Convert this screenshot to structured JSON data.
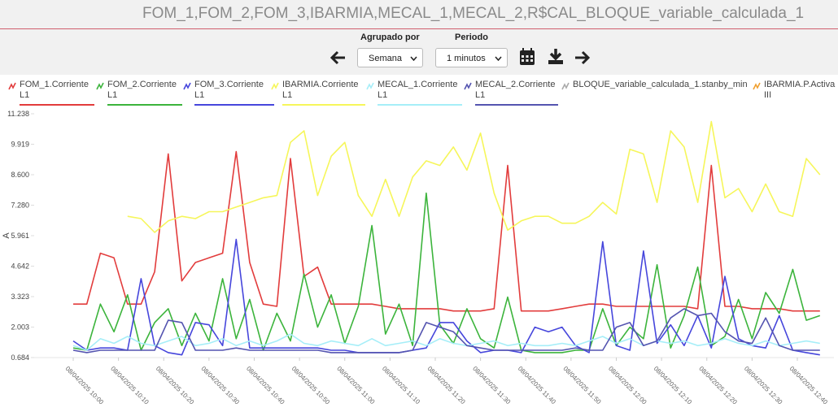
{
  "header": {
    "title": "FOM_1,FOM_2,FOM_3,IBARMIA,MECAL_1,MECAL_2,R$CAL_BLOQUE_variable_calculada_1"
  },
  "controls": {
    "group_label": "Agrupado por",
    "group_value": "Semana",
    "period_label": "Periodo",
    "period_value": "1 minutos"
  },
  "chart_data": {
    "type": "line",
    "ylabel": "A",
    "ylim": [
      0.684,
      11.238
    ],
    "yticks": [
      0.684,
      2.003,
      3.323,
      4.642,
      5.961,
      {
        "value": 7.28,
        "label": "7.280"
      },
      {
        "value": 8.6,
        "label": "8.600"
      },
      9.919,
      11.238
    ],
    "xticks": [
      "08/04/2025 10:00",
      "08/04/2025 10:10",
      "08/04/2025 10:20",
      "08/04/2025 10:30",
      "08/04/2025 10:40",
      "08/04/2025 10:50",
      "08/04/2025 11:00",
      "08/04/2025 11:10",
      "08/04/2025 11:20",
      "08/04/2025 11:30",
      "08/04/2025 11:40",
      "08/04/2025 11:50",
      "08/04/2025 12:00",
      "08/04/2025 12:10",
      "08/04/2025 12:20",
      "08/04/2025 12:30",
      "08/04/2025 12:40"
    ],
    "x": [
      "08/04/2025 10:00",
      "08/04/2025 10:03",
      "08/04/2025 10:06",
      "08/04/2025 10:09",
      "08/04/2025 10:12",
      "08/04/2025 10:15",
      "08/04/2025 10:18",
      "08/04/2025 10:21",
      "08/04/2025 10:24",
      "08/04/2025 10:27",
      "08/04/2025 10:30",
      "08/04/2025 10:33",
      "08/04/2025 10:36",
      "08/04/2025 10:39",
      "08/04/2025 10:42",
      "08/04/2025 10:45",
      "08/04/2025 10:48",
      "08/04/2025 10:51",
      "08/04/2025 10:54",
      "08/04/2025 10:57",
      "08/04/2025 11:00",
      "08/04/2025 11:03",
      "08/04/2025 11:06",
      "08/04/2025 11:09",
      "08/04/2025 11:12",
      "08/04/2025 11:15",
      "08/04/2025 11:18",
      "08/04/2025 11:21",
      "08/04/2025 11:24",
      "08/04/2025 11:27",
      "08/04/2025 11:30",
      "08/04/2025 11:33",
      "08/04/2025 11:36",
      "08/04/2025 11:39",
      "08/04/2025 11:42",
      "08/04/2025 11:45",
      "08/04/2025 11:48",
      "08/04/2025 11:51",
      "08/04/2025 11:54",
      "08/04/2025 11:57",
      "08/04/2025 12:00",
      "08/04/2025 12:03",
      "08/04/2025 12:06",
      "08/04/2025 12:09",
      "08/04/2025 12:12",
      "08/04/2025 12:15",
      "08/04/2025 12:18",
      "08/04/2025 12:21",
      "08/04/2025 12:24",
      "08/04/2025 12:27",
      "08/04/2025 12:30",
      "08/04/2025 12:33",
      "08/04/2025 12:36",
      "08/04/2025 12:39",
      "08/04/2025 12:42",
      "08/04/2025 12:45"
    ],
    "series": [
      {
        "name": "FOM_1.Corriente L1",
        "color": "#e23c3c",
        "values": [
          3.0,
          3.0,
          5.2,
          5.0,
          3.0,
          3.0,
          4.4,
          9.5,
          4.0,
          4.8,
          5.0,
          5.2,
          9.6,
          4.8,
          3.0,
          2.9,
          9.3,
          4.2,
          4.6,
          3.0,
          3.0,
          3.0,
          3.0,
          2.9,
          2.8,
          2.8,
          2.8,
          2.8,
          2.7,
          2.7,
          2.7,
          2.8,
          9.0,
          2.7,
          2.7,
          2.7,
          2.8,
          2.9,
          3.0,
          3.0,
          2.9,
          2.9,
          2.9,
          2.9,
          2.9,
          2.9,
          2.8,
          9.0,
          2.9,
          2.9,
          2.8,
          2.8,
          2.8,
          2.7,
          2.7,
          2.7
        ]
      },
      {
        "name": "FOM_2.Corriente L1",
        "color": "#3cb43c",
        "values": [
          1.1,
          1.0,
          3.0,
          1.8,
          3.4,
          1.0,
          2.2,
          2.8,
          1.2,
          2.6,
          1.4,
          4.1,
          1.5,
          3.2,
          1.0,
          2.6,
          1.4,
          4.3,
          2.0,
          3.4,
          1.3,
          2.9,
          6.4,
          1.7,
          3.0,
          1.2,
          7.8,
          2.1,
          1.3,
          2.8,
          1.5,
          1.1,
          3.3,
          1.0,
          0.9,
          0.9,
          0.9,
          1.0,
          1.0,
          2.8,
          1.2,
          2.0,
          1.5,
          4.7,
          1.1,
          2.5,
          4.6,
          1.2,
          1.6,
          3.2,
          1.5,
          3.5,
          2.6,
          4.5,
          2.3,
          2.5
        ]
      },
      {
        "name": "FOM_3.Corriente L1",
        "color": "#4646dc",
        "values": [
          1.4,
          1.0,
          1.1,
          1.1,
          1.0,
          4.1,
          1.2,
          0.9,
          0.8,
          2.2,
          2.1,
          1.2,
          5.8,
          1.1,
          1.1,
          1.1,
          1.1,
          1.1,
          1.1,
          1.0,
          1.0,
          0.9,
          0.9,
          0.9,
          0.9,
          1.0,
          1.1,
          2.2,
          2.2,
          1.4,
          0.9,
          1.0,
          1.0,
          0.9,
          2.0,
          1.8,
          2.0,
          1.2,
          0.9,
          5.7,
          1.2,
          1.0,
          5.3,
          1.3,
          2.1,
          1.2,
          2.5,
          1.1,
          4.2,
          1.5,
          1.2,
          1.1,
          2.5,
          1.0,
          0.9,
          0.8
        ]
      },
      {
        "name": "IBARMIA.Corriente L1",
        "color": "#f6f65a",
        "values": [
          null,
          null,
          null,
          null,
          6.8,
          6.7,
          6.1,
          6.6,
          6.8,
          6.7,
          7.0,
          7.0,
          7.2,
          7.4,
          7.6,
          7.7,
          10.0,
          10.5,
          7.7,
          9.4,
          10.0,
          7.7,
          6.8,
          8.4,
          6.8,
          8.5,
          9.2,
          9.0,
          9.8,
          8.8,
          10.4,
          7.8,
          6.2,
          6.6,
          6.8,
          6.8,
          6.5,
          6.5,
          6.8,
          7.4,
          6.9,
          9.7,
          9.5,
          7.4,
          10.5,
          9.8,
          7.4,
          10.9,
          7.6,
          8.0,
          7.0,
          8.2,
          7.0,
          6.8,
          9.3,
          8.6
        ]
      },
      {
        "name": "MECAL_1.Corriente L1",
        "color": "#a6eef8",
        "values": [
          1.2,
          1.0,
          1.5,
          1.3,
          1.6,
          1.3,
          1.2,
          1.4,
          1.6,
          1.2,
          1.3,
          1.5,
          1.2,
          1.4,
          1.2,
          1.4,
          1.7,
          1.3,
          1.2,
          1.4,
          1.3,
          1.2,
          1.5,
          1.2,
          1.3,
          1.4,
          1.2,
          1.5,
          1.3,
          1.2,
          1.3,
          1.4,
          1.2,
          1.3,
          1.2,
          1.2,
          1.3,
          1.2,
          1.4,
          1.6,
          1.3,
          1.5,
          1.2,
          1.4,
          1.3,
          1.4,
          1.2,
          1.3,
          1.5,
          1.3,
          1.2,
          1.4,
          1.2,
          1.3,
          1.4,
          1.3
        ]
      },
      {
        "name": "MECAL_2.Corriente L1",
        "color": "#5454b0",
        "values": [
          1.0,
          0.9,
          1.0,
          1.0,
          1.0,
          1.0,
          1.0,
          2.3,
          2.2,
          1.0,
          1.0,
          1.0,
          1.1,
          1.0,
          1.0,
          1.0,
          1.0,
          1.0,
          1.0,
          0.9,
          0.9,
          0.9,
          0.9,
          0.9,
          0.9,
          1.0,
          2.2,
          2.0,
          1.8,
          1.2,
          1.1,
          1.0,
          1.0,
          1.0,
          1.0,
          1.0,
          1.0,
          1.1,
          1.0,
          1.0,
          2.0,
          2.2,
          1.2,
          1.4,
          2.4,
          2.8,
          2.5,
          2.6,
          1.8,
          1.4,
          1.3,
          2.4,
          1.2,
          1.0,
          1.0,
          1.0
        ]
      },
      {
        "name": "BLOQUE_variable_calculada_1.stanby_min",
        "color": "#aaaaaa",
        "values": [
          null,
          null,
          null,
          null,
          null,
          null,
          null,
          null,
          null,
          null,
          null,
          null,
          null,
          null,
          null,
          null,
          null,
          null,
          null,
          null,
          null,
          null,
          null,
          null,
          null,
          null,
          null,
          null,
          null,
          null,
          null,
          null,
          null,
          null,
          null,
          null,
          null,
          null,
          null,
          null,
          null,
          null,
          null,
          null,
          null,
          null,
          null,
          null,
          null,
          null,
          null,
          null,
          null,
          null,
          null,
          null
        ]
      },
      {
        "name": "IBARMIA.P.Activa III",
        "color": "#f0a030",
        "values": [
          null,
          null,
          null,
          null,
          null,
          null,
          null,
          null,
          null,
          null,
          null,
          null,
          null,
          null,
          null,
          null,
          null,
          null,
          null,
          null,
          null,
          null,
          null,
          null,
          null,
          null,
          null,
          null,
          null,
          null,
          null,
          null,
          null,
          null,
          null,
          null,
          null,
          null,
          null,
          null,
          null,
          null,
          null,
          null,
          null,
          null,
          null,
          null,
          null,
          null,
          null,
          null,
          null,
          null,
          null,
          null
        ]
      }
    ]
  }
}
